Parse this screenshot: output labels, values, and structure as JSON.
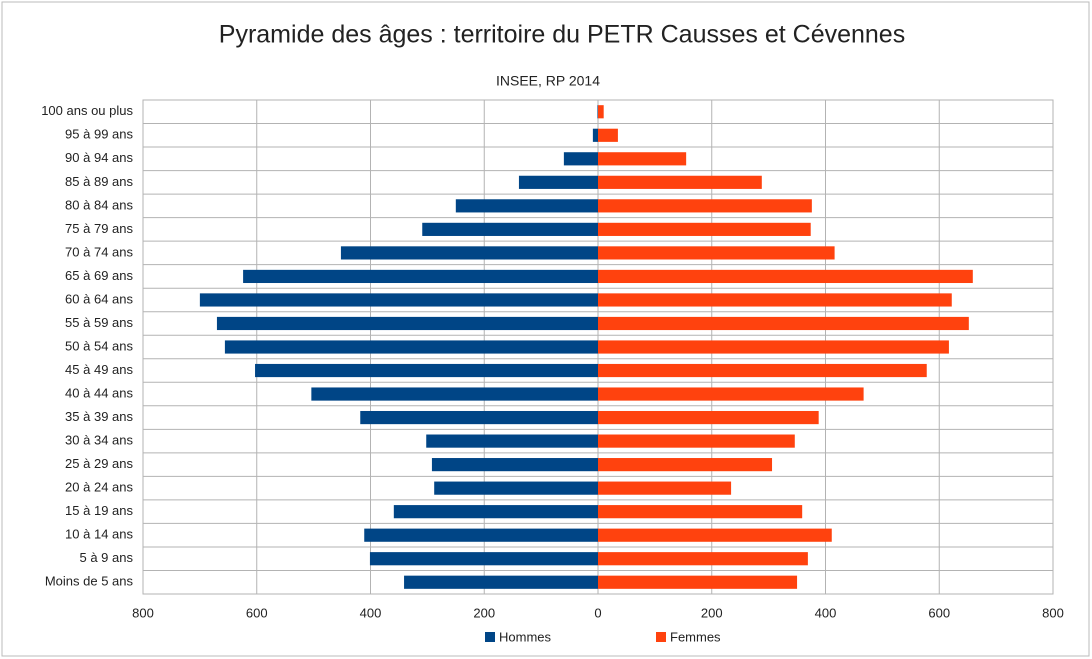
{
  "chart_data": {
    "type": "pyramid",
    "title": "Pyramide des âges : territoire du PETR Causses et Cévennes",
    "subtitle": "INSEE, RP 2014",
    "categories": [
      "100 ans ou plus",
      "95 à 99 ans",
      "90 à 94 ans",
      "85 à 89 ans",
      "80 à 84 ans",
      "75 à 79 ans",
      "70 à 74 ans",
      "65 à 69 ans",
      "60 à 64 ans",
      "55 à 59 ans",
      "50 à 54 ans",
      "45 à 49 ans",
      "40 à 44 ans",
      "35 à 39 ans",
      "30 à 34 ans",
      "25 à 29 ans",
      "20 à 24 ans",
      "15 à 19 ans",
      "10 à 14 ans",
      "5 à 9 ans",
      "Moins de 5 ans"
    ],
    "series": [
      {
        "name": "Hommes",
        "color": "#004586",
        "values": [
          -1,
          -9,
          -60,
          -139,
          -250,
          -309,
          -452,
          -624,
          -700,
          -670,
          -656,
          -603,
          -504,
          -418,
          -302,
          -292,
          -288,
          -359,
          -411,
          -401,
          -341
        ]
      },
      {
        "name": "Femmes",
        "color": "#ff420e",
        "values": [
          10,
          35,
          155,
          288,
          376,
          374,
          416,
          659,
          622,
          652,
          617,
          578,
          467,
          388,
          346,
          306,
          234,
          359,
          411,
          369,
          350
        ]
      }
    ],
    "xlim": [
      -800,
      800
    ],
    "xticks": [
      {
        "value": -800,
        "label": "800"
      },
      {
        "value": -600,
        "label": "600"
      },
      {
        "value": -400,
        "label": "400"
      },
      {
        "value": -200,
        "label": "200"
      },
      0,
      200,
      400,
      600,
      800
    ],
    "grid": true,
    "legend": "bottom"
  }
}
